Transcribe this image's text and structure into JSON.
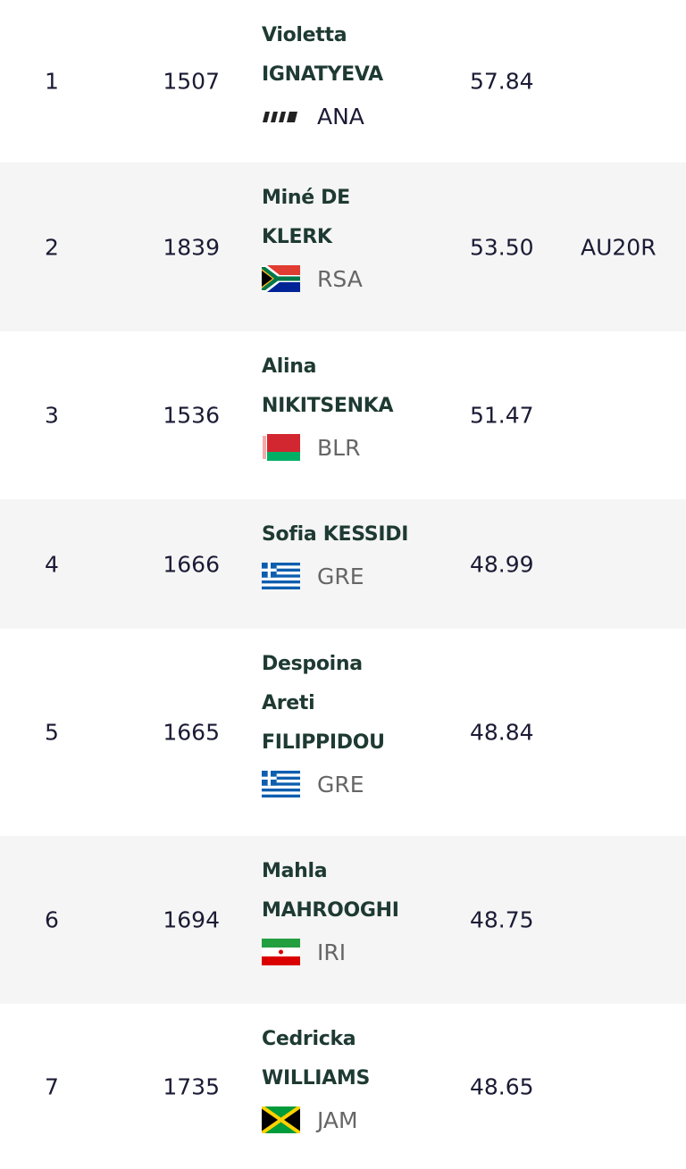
{
  "table": {
    "rows": [
      {
        "place": "1",
        "bib": "1507",
        "name_lines": [
          "Violetta",
          "IGNATYEVA"
        ],
        "country": "ANA",
        "result": "57.84"
      },
      {
        "place": "2",
        "bib": "1839",
        "name_lines": [
          "Miné DE",
          "KLERK"
        ],
        "country": "RSA",
        "result": "53.50",
        "note": "AU20R"
      },
      {
        "place": "3",
        "bib": "1536",
        "name_lines": [
          "Alina",
          "NIKITSENKA"
        ],
        "country": "BLR",
        "result": "51.47"
      },
      {
        "place": "4",
        "bib": "1666",
        "name_lines": [
          "Sofia KESSIDI"
        ],
        "country": "GRE",
        "result": "48.99"
      },
      {
        "place": "5",
        "bib": "1665",
        "name_lines": [
          "Despoina",
          "Areti",
          "FILIPPIDOU"
        ],
        "country": "GRE",
        "result": "48.84"
      },
      {
        "place": "6",
        "bib": "1694",
        "name_lines": [
          "Mahla",
          "MAHROOGHI"
        ],
        "country": "IRI",
        "result": "48.75"
      },
      {
        "place": "7",
        "bib": "1735",
        "name_lines": [
          "Cedricka",
          "WILLIAMS"
        ],
        "country": "JAM",
        "result": "48.65"
      }
    ]
  }
}
